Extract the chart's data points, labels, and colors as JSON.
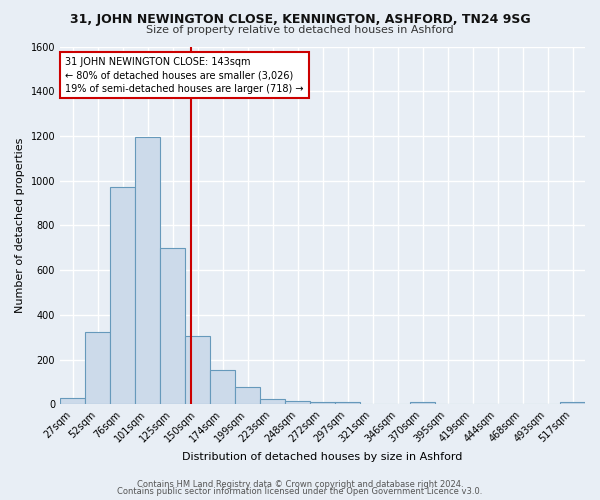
{
  "title_line1": "31, JOHN NEWINGTON CLOSE, KENNINGTON, ASHFORD, TN24 9SG",
  "title_line2": "Size of property relative to detached houses in Ashford",
  "xlabel": "Distribution of detached houses by size in Ashford",
  "ylabel": "Number of detached properties",
  "categories": [
    "27sqm",
    "52sqm",
    "76sqm",
    "101sqm",
    "125sqm",
    "150sqm",
    "174sqm",
    "199sqm",
    "223sqm",
    "248sqm",
    "272sqm",
    "297sqm",
    "321sqm",
    "346sqm",
    "370sqm",
    "395sqm",
    "419sqm",
    "444sqm",
    "468sqm",
    "493sqm",
    "517sqm"
  ],
  "values": [
    27,
    325,
    970,
    1195,
    700,
    305,
    155,
    78,
    25,
    15,
    12,
    12,
    0,
    0,
    12,
    0,
    0,
    0,
    0,
    0,
    12
  ],
  "bar_color": "#ccdaea",
  "bar_edge_color": "#6699bb",
  "vline_x_bin": 4.72,
  "vline_color": "#cc0000",
  "ylim": [
    0,
    1600
  ],
  "yticks": [
    0,
    200,
    400,
    600,
    800,
    1000,
    1200,
    1400,
    1600
  ],
  "annotation_text": "31 JOHN NEWINGTON CLOSE: 143sqm\n← 80% of detached houses are smaller (3,026)\n19% of semi-detached houses are larger (718) →",
  "annotation_box_color": "#ffffff",
  "annotation_box_edge": "#cc0000",
  "footer_line1": "Contains HM Land Registry data © Crown copyright and database right 2024.",
  "footer_line2": "Contains public sector information licensed under the Open Government Licence v3.0.",
  "background_color": "#e8eef5",
  "grid_color": "#ffffff",
  "title_fontsize": 9,
  "subtitle_fontsize": 8,
  "ylabel_fontsize": 8,
  "xlabel_fontsize": 8,
  "tick_fontsize": 7
}
